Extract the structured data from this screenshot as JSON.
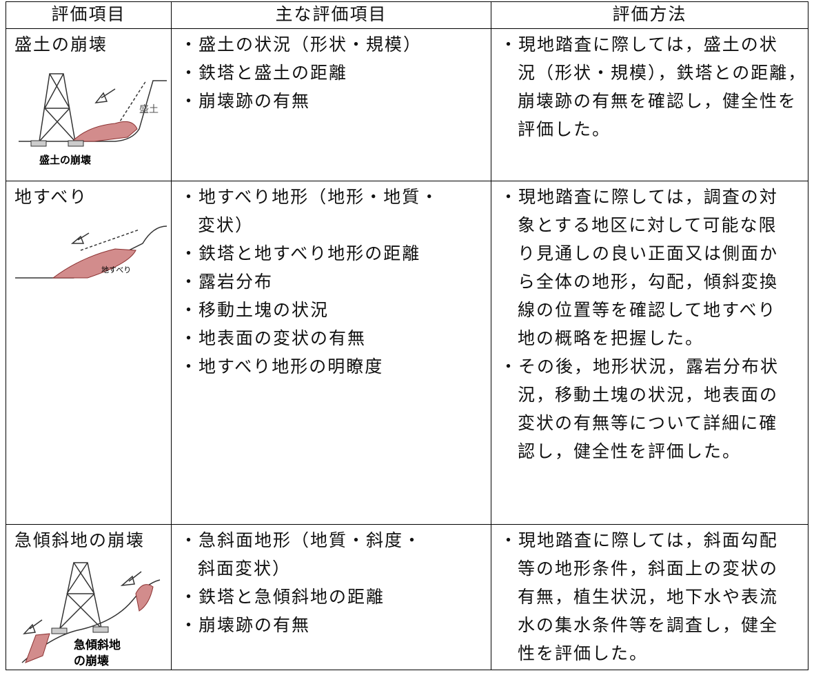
{
  "header": [
    "評価項目",
    "主な評価項目",
    "評価方法"
  ],
  "rows": [
    {
      "item": "盛土の崩壊",
      "figure_labels": [
        "盛土",
        "盛土の崩壊"
      ],
      "points": [
        [
          "・盛土の状況（形状・規模）"
        ],
        [
          "・鉄塔と盛土の距離"
        ],
        [
          "・崩壊跡の有無"
        ]
      ],
      "method": [
        [
          "・現地踏査に際しては，盛土の状",
          "況（形状・規模），鉄塔との距離，",
          "崩壊跡の有無を確認し，健全性を",
          "評価した。"
        ]
      ]
    },
    {
      "item": "地すべり",
      "figure_labels": [
        "地すべり"
      ],
      "points": [
        [
          "・地すべり地形（地形・地質・",
          "変状）"
        ],
        [
          "・鉄塔と地すべり地形の距離"
        ],
        [
          "・露岩分布"
        ],
        [
          "・移動土塊の状況"
        ],
        [
          "・地表面の変状の有無"
        ],
        [
          "・地すべり地形の明瞭度"
        ]
      ],
      "method": [
        [
          "・現地踏査に際しては，調査の対",
          "象とする地区に対して可能な限",
          "り見通しの良い正面又は側面か",
          "ら全体の地形，勾配，傾斜変換",
          "線の位置等を確認して地すべり",
          "地の概略を把握した。"
        ],
        [
          "・その後，地形状況，露岩分布状",
          "況，移動土塊の状況，地表面の",
          "変状の有無等について詳細に確",
          "認し，健全性を評価した。"
        ]
      ]
    },
    {
      "item": "急傾斜地の崩壊",
      "figure_labels": [
        "急傾斜地",
        "の崩壊"
      ],
      "points": [
        [
          "・急斜面地形（地質・斜度・",
          "斜面変状）"
        ],
        [
          "・鉄塔と急傾斜地の距離"
        ],
        [
          "・崩壊跡の有無"
        ]
      ],
      "method": [
        [
          "・現地踏査に際しては，斜面勾配",
          "等の地形条件，斜面上の変状の",
          "有無，植生状況，地下水や表流",
          "水の集水条件等を調査し，健全",
          "性を評価した。"
        ]
      ]
    }
  ]
}
